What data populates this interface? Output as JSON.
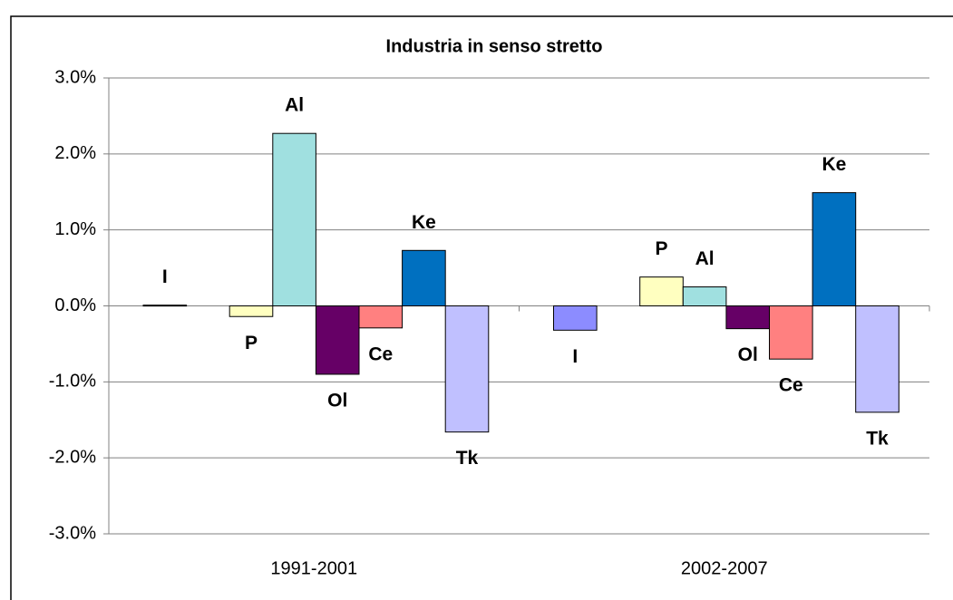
{
  "chart_data": {
    "type": "bar",
    "title": "Industria in senso stretto",
    "categories": [
      "1991-2001",
      "2002-2007"
    ],
    "series": [
      {
        "name": "I",
        "color": "#8c8cff",
        "values": [
          0.01,
          -0.32
        ]
      },
      {
        "name": "P",
        "color": "#ffffc0",
        "values": [
          -0.14,
          0.38
        ]
      },
      {
        "name": "Al",
        "color": "#a0e0e0",
        "values": [
          2.27,
          0.25
        ]
      },
      {
        "name": "Ol",
        "color": "#660066",
        "values": [
          -0.9,
          -0.3
        ]
      },
      {
        "name": "Ce",
        "color": "#ff8080",
        "values": [
          -0.29,
          -0.7
        ]
      },
      {
        "name": "Ke",
        "color": "#0070c0",
        "values": [
          0.73,
          1.49
        ]
      },
      {
        "name": "Tk",
        "color": "#c0c0ff",
        "values": [
          -1.66,
          -1.4
        ]
      }
    ],
    "ylim": [
      -3,
      3
    ],
    "yticks": [
      {
        "value": -3,
        "label": "-3.0%"
      },
      {
        "value": -2,
        "label": "-2.0%"
      },
      {
        "value": -1,
        "label": "-1.0%"
      },
      {
        "value": 0,
        "label": "0.0%"
      },
      {
        "value": 1,
        "label": "1.0%"
      },
      {
        "value": 2,
        "label": "2.0%"
      },
      {
        "value": 3,
        "label": "3.0%"
      }
    ],
    "grid": true
  }
}
